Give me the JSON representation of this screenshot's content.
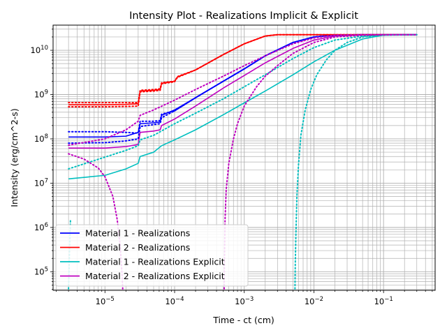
{
  "chart_data": {
    "type": "line",
    "title": "Intensity Plot - Realizations Implicit & Explicit",
    "xlabel": "Time - ct (cm)",
    "ylabel": "Intensity (erg/cm^2-s)",
    "x_scale": "log",
    "y_scale": "log",
    "xlim": [
      1.8e-06,
      0.55
    ],
    "ylim": [
      38000,
      37000000000
    ],
    "x_ticks": [
      {
        "value": 1e-05,
        "base": "10",
        "exp": "−5"
      },
      {
        "value": 0.0001,
        "base": "10",
        "exp": "−4"
      },
      {
        "value": 0.001,
        "base": "10",
        "exp": "−3"
      },
      {
        "value": 0.01,
        "base": "10",
        "exp": "−2"
      },
      {
        "value": 0.1,
        "base": "10",
        "exp": "−1"
      }
    ],
    "y_ticks": [
      {
        "value": 100000.0,
        "base": "10",
        "exp": "5"
      },
      {
        "value": 1000000.0,
        "base": "10",
        "exp": "6"
      },
      {
        "value": 10000000.0,
        "base": "10",
        "exp": "7"
      },
      {
        "value": 100000000.0,
        "base": "10",
        "exp": "8"
      },
      {
        "value": 1000000000.0,
        "base": "10",
        "exp": "9"
      },
      {
        "value": 10000000000.0,
        "base": "10",
        "exp": "10"
      }
    ],
    "grid": true,
    "grid_minor": true,
    "legend_position": "lower-left",
    "series": [
      {
        "name": "Material 1 - Realizations",
        "color": "#0000ff",
        "style": "solid",
        "x": [
          3e-06,
          1e-05,
          2e-05,
          3e-05,
          3.2e-05,
          5e-05,
          6.2e-05,
          6.5e-05,
          0.0001,
          0.0002,
          0.0005,
          0.001,
          0.002,
          0.005,
          0.01,
          0.02,
          0.05,
          0.1,
          0.3
        ],
        "y": [
          110000000.0,
          110000000.0,
          115000000.0,
          140000000.0,
          220000000.0,
          230000000.0,
          240000000.0,
          340000000.0,
          450000000.0,
          850000000.0,
          2000000000.0,
          3800000000.0,
          7500000000.0,
          15000000000.0,
          20000000000.0,
          22000000000.0,
          22500000000.0,
          22500000000.0,
          22500000000.0
        ]
      },
      {
        "name": "Material 2 - Realizations",
        "color": "#ff0000",
        "style": "solid",
        "x": [
          3e-06,
          1e-05,
          2e-05,
          3e-05,
          3.2e-05,
          5e-05,
          6.2e-05,
          6.5e-05,
          0.0001,
          0.00011,
          0.0002,
          0.0005,
          0.001,
          0.002,
          0.003,
          0.005,
          0.01,
          0.02,
          0.3
        ],
        "y": [
          590000000.0,
          590000000.0,
          600000000.0,
          620000000.0,
          1200000000.0,
          1250000000.0,
          1300000000.0,
          1800000000.0,
          2000000000.0,
          2500000000.0,
          3600000000.0,
          8000000000.0,
          14000000000.0,
          21000000000.0,
          22500000000.0,
          22500000000.0,
          22500000000.0,
          22500000000.0,
          22500000000.0
        ]
      },
      {
        "name": "Material 1 - Realizations Explicit",
        "color": "#00bfbf",
        "style": "solid",
        "x": [
          3e-06,
          1e-05,
          2e-05,
          3e-05,
          3.2e-05,
          5e-05,
          6.5e-05,
          0.0001,
          0.0002,
          0.0005,
          0.001,
          0.002,
          0.005,
          0.01,
          0.02,
          0.05,
          0.1,
          0.3
        ],
        "y": [
          12500000.0,
          15000000.0,
          21000000.0,
          28000000.0,
          40000000.0,
          50000000.0,
          70000000.0,
          95000000.0,
          160000000.0,
          350000000.0,
          650000000.0,
          1200000000.0,
          2800000000.0,
          5500000000.0,
          10000000000.0,
          18000000000.0,
          22000000000.0,
          22500000000.0
        ]
      },
      {
        "name": "Material 2 - Realizations Explicit",
        "color": "#bf00bf",
        "style": "solid",
        "x": [
          3e-06,
          1e-05,
          2e-05,
          3e-05,
          3.2e-05,
          5e-05,
          6.2e-05,
          6.5e-05,
          0.0001,
          0.0002,
          0.0005,
          0.001,
          0.002,
          0.005,
          0.01,
          0.02,
          0.05,
          0.1,
          0.3
        ],
        "y": [
          62000000.0,
          62000000.0,
          67000000.0,
          75000000.0,
          140000000.0,
          150000000.0,
          160000000.0,
          200000000.0,
          280000000.0,
          550000000.0,
          1400000000.0,
          2700000000.0,
          5200000000.0,
          11000000000.0,
          17000000000.0,
          21000000000.0,
          22500000000.0,
          22500000000.0,
          22500000000.0
        ]
      },
      {
        "color": "#0000ff",
        "style": "dotted",
        "x": [
          3e-06,
          1e-05,
          2e-05,
          3e-05,
          3.2e-05,
          5e-05,
          6.2e-05,
          6.5e-05,
          0.0001,
          0.0002,
          0.0005,
          0.001,
          0.002,
          0.005,
          0.01,
          0.02,
          0.05,
          0.1,
          0.3
        ],
        "y": [
          145000000.0,
          145000000.0,
          140000000.0,
          135000000.0,
          250000000.0,
          250000000.0,
          260000000.0,
          360000000.0,
          430000000.0,
          850000000.0,
          2000000000.0,
          3800000000.0,
          7500000000.0,
          15000000000.0,
          20000000000.0,
          22000000000.0,
          22500000000.0,
          22500000000.0,
          22500000000.0
        ]
      },
      {
        "color": "#0000ff",
        "style": "dotted",
        "x": [
          3e-06,
          1e-05,
          2e-05,
          3e-05,
          3.2e-05,
          5e-05,
          6.2e-05,
          6.5e-05,
          0.0001,
          0.0002,
          0.0005,
          0.001,
          0.002,
          0.005,
          0.01,
          0.02,
          0.05,
          0.1,
          0.3
        ],
        "y": [
          80000000.0,
          82000000.0,
          90000000.0,
          100000000.0,
          190000000.0,
          210000000.0,
          220000000.0,
          300000000.0,
          430000000.0,
          850000000.0,
          2000000000.0,
          3800000000.0,
          7500000000.0,
          15000000000.0,
          20000000000.0,
          22000000000.0,
          22500000000.0,
          22500000000.0,
          22500000000.0
        ]
      },
      {
        "color": "#ff0000",
        "style": "dotted",
        "x": [
          3e-06,
          1e-05,
          2e-05,
          3e-05,
          3.2e-05,
          5e-05,
          6.2e-05,
          6.5e-05,
          0.0001,
          0.00011,
          0.0002,
          0.0005,
          0.001,
          0.002,
          0.003,
          0.3
        ],
        "y": [
          660000000.0,
          660000000.0,
          660000000.0,
          660000000.0,
          1250000000.0,
          1300000000.0,
          1350000000.0,
          1850000000.0,
          2000000000.0,
          2550000000.0,
          3600000000.0,
          8000000000.0,
          14000000000.0,
          21000000000.0,
          22500000000.0,
          22500000000.0
        ]
      },
      {
        "color": "#ff0000",
        "style": "dotted",
        "x": [
          3e-06,
          1e-05,
          2e-05,
          3e-05,
          3.2e-05,
          5e-05,
          6.2e-05,
          6.5e-05,
          0.0001,
          0.00011,
          0.0002,
          0.0005,
          0.001,
          0.002,
          0.003,
          0.3
        ],
        "y": [
          530000000.0,
          530000000.0,
          540000000.0,
          550000000.0,
          1150000000.0,
          1200000000.0,
          1250000000.0,
          1750000000.0,
          1950000000.0,
          2450000000.0,
          3600000000.0,
          8000000000.0,
          14000000000.0,
          21000000000.0,
          22500000000.0,
          22500000000.0
        ]
      },
      {
        "color": "#00bfbf",
        "style": "dotted",
        "x": [
          3e-06,
          2e-05,
          3e-05,
          3.2e-05,
          5e-05,
          0.0001,
          0.0002,
          0.0005,
          0.001,
          0.002,
          0.005,
          0.01,
          0.02,
          0.05,
          0.1,
          0.3
        ],
        "y": [
          21000000.0,
          55000000.0,
          70000000.0,
          95000000.0,
          120000000.0,
          220000000.0,
          380000000.0,
          800000000.0,
          1500000000.0,
          2800000000.0,
          6500000000.0,
          11500000000.0,
          17000000000.0,
          21000000000.0,
          22000000000.0,
          22500000000.0
        ]
      },
      {
        "color": "#00bfbf",
        "style": "dotted",
        "x": [
          3e-06,
          3.05e-06,
          3.1e-06,
          3.2e-06
        ],
        "y": [
          41000,
          100000,
          300000,
          1500000.0
        ]
      },
      {
        "color": "#00bfbf",
        "style": "dotted",
        "x": [
          0.00535,
          0.0054,
          0.0055,
          0.0057,
          0.006,
          0.0065,
          0.0075,
          0.009,
          0.011,
          0.015,
          0.02,
          0.03,
          0.05,
          0.1,
          0.3
        ],
        "y": [
          41000,
          150000,
          600000,
          5000000.0,
          25000000.0,
          120000000.0,
          450000000.0,
          1300000000.0,
          2800000000.0,
          6000000000.0,
          10000000000.0,
          15000000000.0,
          20000000000.0,
          22000000000.0,
          22500000000.0
        ]
      },
      {
        "color": "#bf00bf",
        "style": "dotted",
        "x": [
          3e-06,
          5e-06,
          8e-06,
          1e-05,
          1.3e-05,
          1.5e-05,
          1.65e-05,
          1.75e-05,
          1.8e-05
        ],
        "y": [
          46000000.0,
          35000000.0,
          22000000.0,
          14000000.0,
          5000000.0,
          1500000.0,
          400000,
          100000,
          41000
        ]
      },
      {
        "color": "#bf00bf",
        "style": "dotted",
        "x": [
          3e-06,
          1e-05,
          2e-05,
          3e-05,
          3.2e-05,
          5e-05,
          0.0001,
          0.0002,
          0.0005,
          0.001,
          0.002,
          0.005,
          0.01,
          0.02,
          0.05,
          0.3
        ],
        "y": [
          72000000.0,
          100000000.0,
          160000000.0,
          250000000.0,
          340000000.0,
          450000000.0,
          750000000.0,
          1300000000.0,
          2600000000.0,
          4500000000.0,
          7500000000.0,
          14000000000.0,
          19000000000.0,
          22000000000.0,
          22500000000.0,
          22500000000.0
        ]
      },
      {
        "color": "#bf00bf",
        "style": "dotted",
        "x": [
          0.000515,
          0.00052,
          0.00053,
          0.00055,
          0.0006,
          0.0007,
          0.0008,
          0.001,
          0.0015,
          0.002,
          0.003,
          0.005,
          0.01,
          0.02,
          0.05,
          0.3
        ],
        "y": [
          41000,
          200000,
          1500000.0,
          7000000.0,
          28000000.0,
          100000000.0,
          220000000.0,
          550000000.0,
          1500000000.0,
          2600000000.0,
          4500000000.0,
          8500000000.0,
          15000000000.0,
          20000000000.0,
          22000000000.0,
          22500000000.0
        ]
      }
    ]
  }
}
